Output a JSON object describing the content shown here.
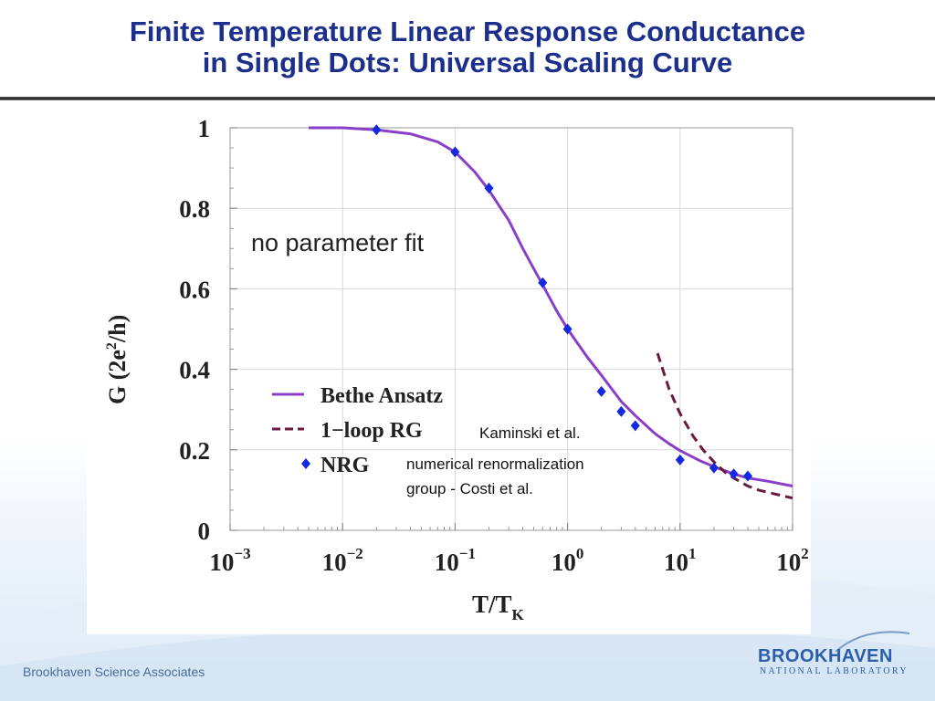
{
  "slide": {
    "title_line1": "Finite Temperature Linear Response Conductance",
    "title_line2": "in Single Dots: Universal Scaling Curve",
    "footer_left": "Brookhaven Science Associates",
    "logo_main": "BROOKHAVEN",
    "logo_sub": "NATIONAL LABORATORY"
  },
  "chart_data": {
    "type": "line",
    "xlabel": "T/T",
    "xlabel_sub": "K",
    "ylabel": "G  (2e",
    "ylabel_sup": "2",
    "ylabel_tail": "/h)",
    "x_scale": "log",
    "xlim": [
      0.001,
      100
    ],
    "ylim": [
      0,
      1
    ],
    "yticks": [
      "0",
      "0.2",
      "0.4",
      "0.6",
      "0.8",
      "1"
    ],
    "yticks_values": [
      0,
      0.2,
      0.4,
      0.6,
      0.8,
      1
    ],
    "xticks_values": [
      0.001,
      0.01,
      0.1,
      1,
      10,
      100
    ],
    "xticks_exponents": [
      "−3",
      "−2",
      "−1",
      "0",
      "1",
      "2"
    ],
    "xticks_base": "10",
    "grid": true,
    "annotation": "no parameter fit",
    "legend": [
      {
        "label": "Bethe Ansatz",
        "color": "#8a3fc8",
        "style": "solid"
      },
      {
        "label": "1−loop RG",
        "color": "#6a1a40",
        "style": "dashed"
      },
      {
        "label": "NRG",
        "color": "#1428e0",
        "style": "diamond"
      }
    ],
    "legend_notes": {
      "rg_credit": "Kaminski et al.",
      "nrg_credit_line1": "numerical renormalization",
      "nrg_credit_line2": "group - Costi et al."
    },
    "series": [
      {
        "name": "Bethe Ansatz",
        "color": "#8a3fc8",
        "x": [
          0.005,
          0.01,
          0.02,
          0.04,
          0.07,
          0.1,
          0.15,
          0.2,
          0.3,
          0.4,
          0.5,
          0.6,
          0.8,
          1,
          1.5,
          2,
          3,
          4,
          6,
          8,
          10,
          15,
          20,
          30,
          40,
          60,
          100
        ],
        "y": [
          1.0,
          1.0,
          0.995,
          0.985,
          0.965,
          0.94,
          0.89,
          0.845,
          0.77,
          0.7,
          0.65,
          0.61,
          0.545,
          0.5,
          0.43,
          0.385,
          0.32,
          0.285,
          0.24,
          0.215,
          0.198,
          0.173,
          0.158,
          0.14,
          0.13,
          0.122,
          0.11
        ]
      },
      {
        "name": "1−loop RG",
        "color": "#6a1a40",
        "x": [
          6.3,
          8,
          10,
          13,
          16,
          20,
          25,
          30,
          40,
          50,
          70,
          100
        ],
        "y": [
          0.44,
          0.35,
          0.29,
          0.235,
          0.2,
          0.17,
          0.145,
          0.13,
          0.11,
          0.1,
          0.09,
          0.08
        ]
      },
      {
        "name": "NRG",
        "color": "#1428e0",
        "x": [
          0.02,
          0.1,
          0.2,
          0.6,
          1,
          2,
          3,
          4,
          10,
          20,
          30,
          40
        ],
        "y": [
          0.995,
          0.94,
          0.85,
          0.615,
          0.5,
          0.345,
          0.295,
          0.26,
          0.175,
          0.155,
          0.14,
          0.135
        ]
      }
    ]
  }
}
